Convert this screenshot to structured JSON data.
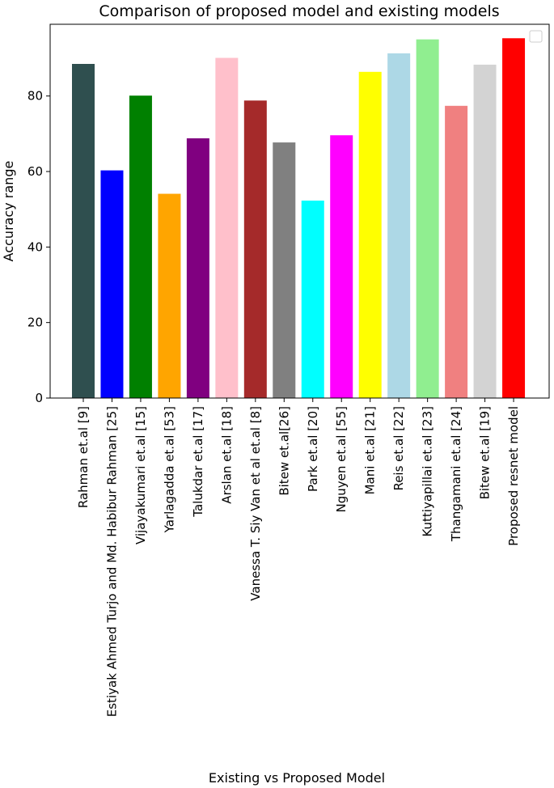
{
  "chart_data": {
    "type": "bar",
    "title": "Comparison of proposed model and existing models",
    "xlabel": "Existing vs Proposed Model",
    "ylabel": "Accuracy range",
    "ylim": [
      0,
      99
    ],
    "yticks": [
      0,
      20,
      40,
      60,
      80
    ],
    "grid": false,
    "legend": "top-right, empty",
    "categories": [
      "Rahman et.al [9]",
      "Estiyak Ahmed Turjo and Md. Habibur Rahman [25]",
      "Vijayakumari et.al [15]",
      "Yarlagadda et.al [53]",
      "Talukdar et.al [17]",
      "Arslan et.al [18]",
      "Vanessa T. Siy Van et al  et.al [8]",
      "Bitew et.al[26]",
      "Park et.al [20]",
      "Nguyen et.al [55]",
      "Mani et.al [21]",
      "Reis et.al [22]",
      "Kuttiyapillai et.al [23]",
      "Thangamani et.al [24]",
      "Bitew et.al [19]",
      "Proposed resnet model"
    ],
    "values": [
      88.5,
      60.3,
      80.1,
      54.1,
      68.8,
      90.1,
      78.8,
      67.7,
      52.3,
      69.6,
      86.4,
      91.3,
      95.0,
      77.4,
      88.3,
      95.3
    ],
    "colors": [
      "#2f4f4f",
      "#0000ff",
      "#008000",
      "#ffa500",
      "#800080",
      "#ffc0cb",
      "#a52a2a",
      "#808080",
      "#00ffff",
      "#ff00ff",
      "#ffff00",
      "#add8e6",
      "#90ee90",
      "#f08080",
      "#d3d3d3",
      "#ff0000"
    ]
  }
}
